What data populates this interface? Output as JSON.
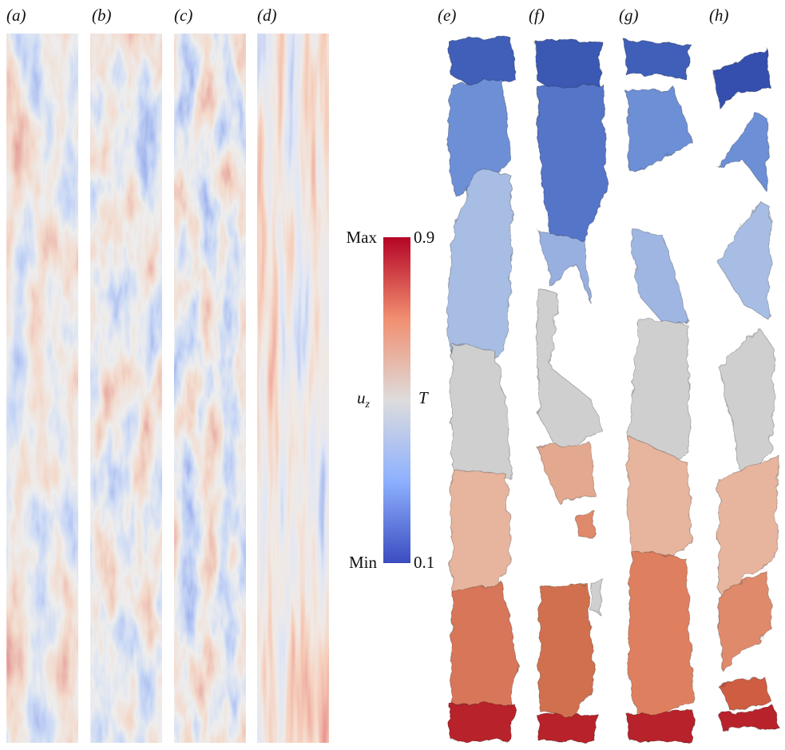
{
  "panel_labels": [
    "(a)",
    "(b)",
    "(c)",
    "(d)",
    "(e)",
    "(f)",
    "(g)",
    "(h)"
  ],
  "colorbar": {
    "top_left": "Max",
    "bottom_left": "Min",
    "top_right": "0.9",
    "bottom_right": "0.1",
    "left_label": {
      "base": "u",
      "sub": "z"
    },
    "right_label": "T"
  }
}
